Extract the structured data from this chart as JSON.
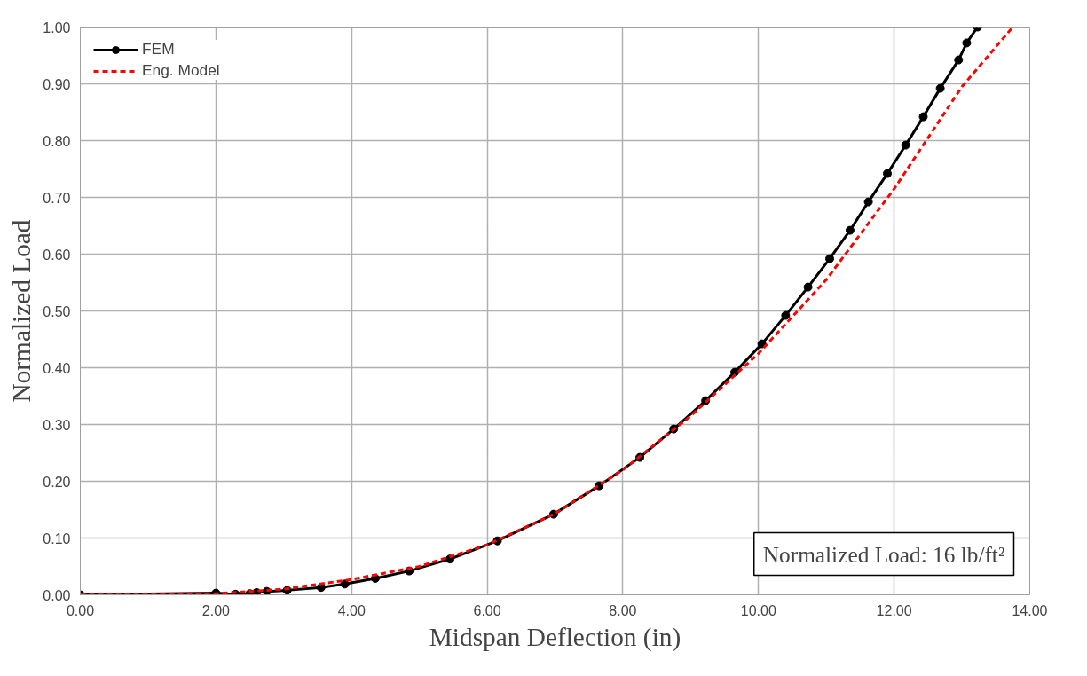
{
  "chart_data": {
    "type": "line",
    "xlabel": "Midspan Deflection (in)",
    "ylabel": "Normalized Load",
    "xlim": [
      0,
      14
    ],
    "ylim": [
      0,
      1
    ],
    "xticks": [
      {
        "value": 0,
        "label": "0.00"
      },
      {
        "value": 2,
        "label": "2.00"
      },
      {
        "value": 4,
        "label": "4.00"
      },
      {
        "value": 6,
        "label": "6.00"
      },
      {
        "value": 8,
        "label": "8.00"
      },
      {
        "value": 10,
        "label": "10.00"
      },
      {
        "value": 12,
        "label": "12.00"
      },
      {
        "value": 14,
        "label": "14.00"
      }
    ],
    "yticks": [
      {
        "value": 0,
        "label": "0.00"
      },
      {
        "value": 0.1,
        "label": "0.10"
      },
      {
        "value": 0.2,
        "label": "0.20"
      },
      {
        "value": 0.3,
        "label": "0.30"
      },
      {
        "value": 0.4,
        "label": "0.40"
      },
      {
        "value": 0.5,
        "label": "0.50"
      },
      {
        "value": 0.6,
        "label": "0.60"
      },
      {
        "value": 0.7,
        "label": "0.70"
      },
      {
        "value": 0.8,
        "label": "0.80"
      },
      {
        "value": 0.9,
        "label": "0.90"
      },
      {
        "value": 1,
        "label": "1.00"
      }
    ],
    "grid": true,
    "legend": "top left",
    "annotations": [
      "Normalized Load: 16 lb/ft²"
    ],
    "series": [
      {
        "name": "FEM",
        "color": "#000000",
        "marker": "circle",
        "line_style": "solid",
        "x": [
          0,
          2.0,
          2.29,
          2.5,
          2.6,
          2.75,
          3.05,
          3.55,
          3.9,
          4.35,
          4.85,
          5.45,
          6.15,
          6.98,
          7.65,
          8.25,
          8.75,
          9.22,
          9.65,
          10.05,
          10.4,
          10.73,
          11.05,
          11.35,
          11.62,
          11.9,
          12.17,
          12.43,
          12.68,
          12.95,
          13.07,
          13.23
        ],
        "values": [
          0,
          0.003,
          0.001,
          0.002,
          0.004,
          0.006,
          0.008,
          0.013,
          0.019,
          0.029,
          0.042,
          0.063,
          0.095,
          0.142,
          0.192,
          0.242,
          0.292,
          0.342,
          0.392,
          0.442,
          0.492,
          0.542,
          0.592,
          0.642,
          0.692,
          0.742,
          0.792,
          0.842,
          0.892,
          0.942,
          0.972,
          1.0
        ]
      },
      {
        "name": "Eng. Model",
        "color": "#ff0000",
        "marker": "none",
        "line_style": "dashed",
        "x": [
          0,
          2,
          3,
          4,
          5,
          6,
          7,
          8,
          9,
          10,
          11,
          12,
          13,
          13.75
        ],
        "values": [
          0,
          0.002,
          0.01,
          0.027,
          0.05,
          0.088,
          0.143,
          0.22,
          0.315,
          0.425,
          0.555,
          0.715,
          0.895,
          1.0
        ]
      }
    ]
  }
}
